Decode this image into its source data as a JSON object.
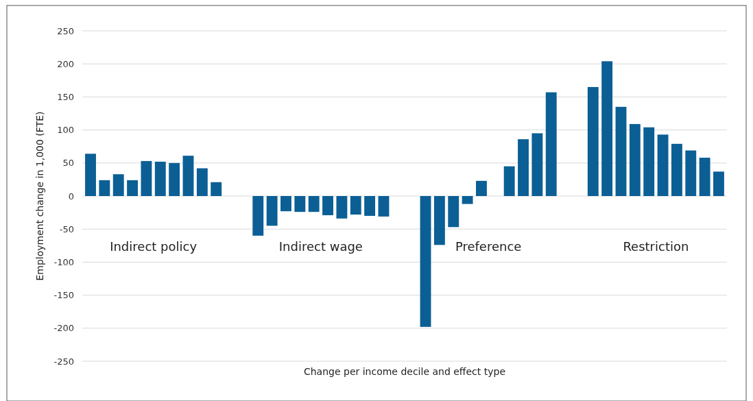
{
  "chart_data": {
    "type": "bar",
    "xlabel": "Change per income decile and effect type",
    "ylabel": "Employment change in 1,000 (FTE)",
    "categories": [
      null,
      null,
      null,
      null,
      null,
      null,
      null,
      null,
      null,
      null,
      null,
      null,
      null,
      null,
      null,
      null,
      null,
      null,
      null,
      null,
      null,
      null,
      null,
      null,
      null,
      null,
      null,
      null,
      null,
      null,
      null,
      null,
      null,
      null,
      null,
      null,
      null,
      null,
      null,
      null,
      null,
      null,
      null,
      null,
      null,
      null
    ],
    "values": [
      64,
      24,
      33,
      24,
      53,
      52,
      50,
      61,
      42,
      21,
      null,
      null,
      -60,
      -45,
      -23,
      -24,
      -24,
      -29,
      -34,
      -28,
      -30,
      -31,
      null,
      null,
      -198,
      -74,
      -47,
      -12,
      23,
      0,
      45,
      86,
      95,
      157,
      null,
      null,
      165,
      204,
      135,
      109,
      104,
      93,
      79,
      69,
      58,
      37
    ],
    "color": "#0b5f95",
    "ylim": [
      -250,
      250
    ],
    "yticks": [
      -250,
      -200,
      -150,
      -100,
      -50,
      0,
      50,
      100,
      150,
      200,
      250
    ],
    "grid": "y",
    "tick_labels": "y",
    "annotations": [
      "Indirect policy",
      "Indirect wage",
      "Preference",
      "Restriction"
    ]
  }
}
